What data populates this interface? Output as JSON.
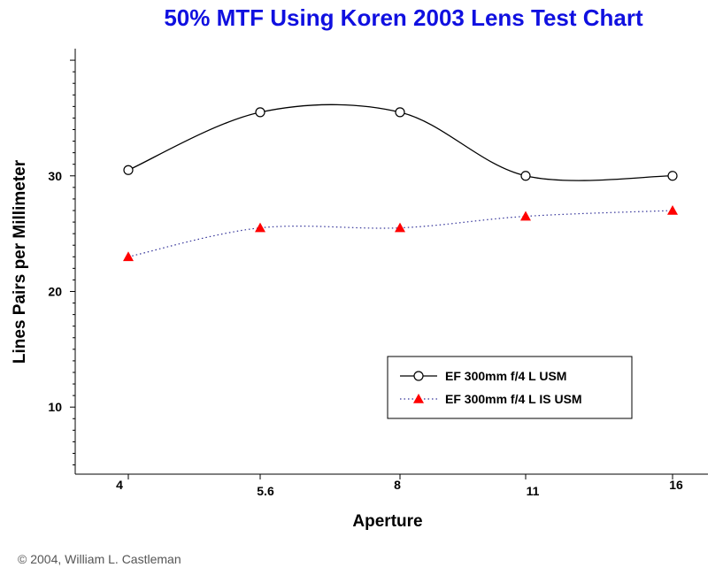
{
  "chart_data": {
    "type": "line",
    "title": "50% MTF Using Koren 2003 Lens Test Chart",
    "title_color": "#1010e0",
    "xlabel": "Aperture",
    "ylabel": "Lines Pairs per Millimeter",
    "categories": [
      "4",
      "5.6",
      "8",
      "11",
      "16"
    ],
    "y_ticks": [
      10,
      20,
      30
    ],
    "ylim": [
      4.2,
      41
    ],
    "grid": false,
    "legend_position": "lower-right",
    "series": [
      {
        "name": "EF 300mm f/4 L USM",
        "values": [
          30.5,
          35.5,
          35.5,
          30,
          30
        ],
        "color": "#000000",
        "marker": "open-circle",
        "line_style": "solid"
      },
      {
        "name": "EF 300mm f/4 L IS USM",
        "values": [
          23,
          25.5,
          25.5,
          26.5,
          27
        ],
        "color": "#ff0000",
        "marker": "filled-triangle",
        "line_style": "dotted"
      }
    ]
  },
  "credit": "© 2004, William L. Castleman"
}
